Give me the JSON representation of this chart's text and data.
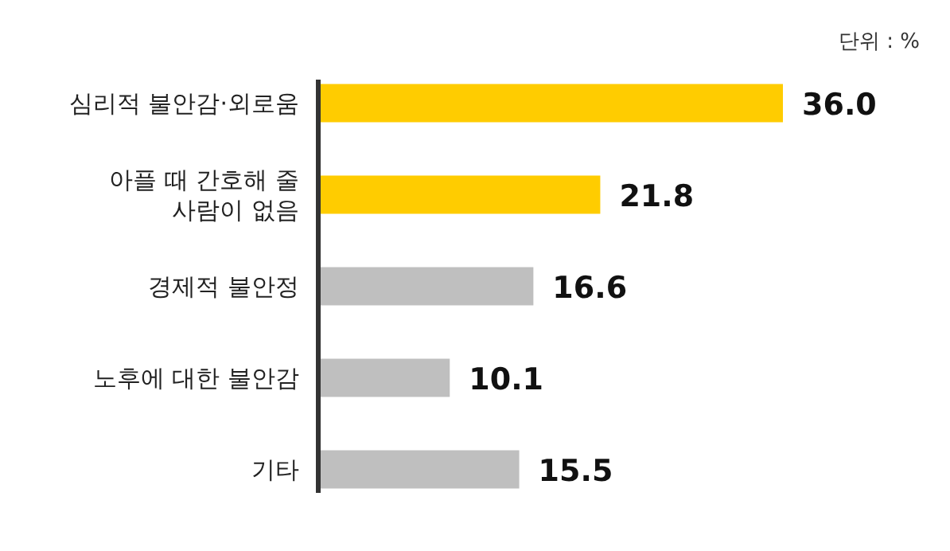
{
  "chart_data": {
    "type": "bar",
    "orientation": "horizontal",
    "value_labels": [
      "36.0",
      "21.8",
      "16.6",
      "10.1",
      "15.5"
    ],
    "categories": [
      "심리적 불안감·외로움",
      "아플 때 간호해 줄\n사람이 없음",
      "경제적 불안정",
      "노후에 대한 불안감",
      "기타"
    ],
    "values": [
      36.0,
      21.8,
      16.6,
      10.1,
      15.5
    ],
    "colors": [
      "#ffcc00",
      "#ffcc00",
      "#bfbfbf",
      "#bfbfbf",
      "#bfbfbf"
    ],
    "annotations": [
      "단위 : %"
    ]
  }
}
